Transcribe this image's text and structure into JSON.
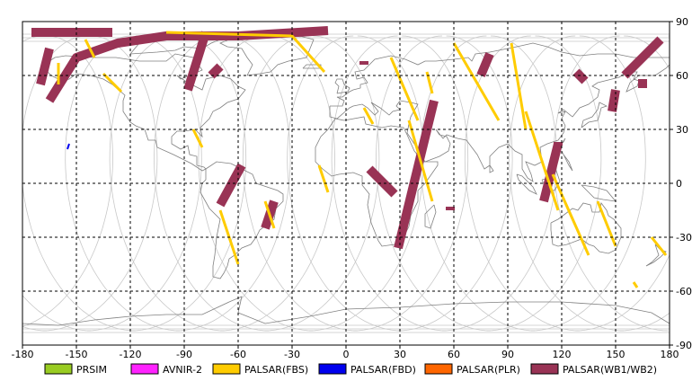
{
  "map": {
    "x_ticks": [
      "-180",
      "-150",
      "-120",
      "-90",
      "-60",
      "-30",
      "0",
      "30",
      "60",
      "90",
      "120",
      "150",
      "180"
    ],
    "y_ticks": [
      "90",
      "60",
      "30",
      "0",
      "-30",
      "-60",
      "-90"
    ],
    "lon_range": [
      -180,
      180
    ],
    "lat_range": [
      -90,
      90
    ],
    "grid": "dashed",
    "frame_color": "#000000",
    "grid_color": "#000000",
    "orbit_color": "#c8c8c8",
    "coast_color": "#808080"
  },
  "legend": {
    "placement": "bottom",
    "items": [
      {
        "label": "PRSIM",
        "color": "#99cc22"
      },
      {
        "label": "AVNIR-2",
        "color": "#ff22ff"
      },
      {
        "label": "PALSAR(FBS)",
        "color": "#ffcc00"
      },
      {
        "label": "PALSAR(FBD)",
        "color": "#0000ee"
      },
      {
        "label": "PALSAR(PLR)",
        "color": "#ff6600"
      },
      {
        "label": "PALSAR(WB1/WB2)",
        "color": "#993355"
      }
    ]
  },
  "swaths": [
    {
      "sensor": "PALSAR(WB1/WB2)",
      "lon": [
        -165,
        -150,
        -127,
        -100,
        -60,
        -10
      ],
      "lat": [
        46,
        70,
        78,
        82,
        82,
        85
      ]
    },
    {
      "sensor": "PALSAR(WB1/WB2)",
      "lon": [
        -175,
        -130
      ],
      "lat": [
        84,
        84
      ]
    },
    {
      "sensor": "PALSAR(WB1/WB2)",
      "lon": [
        -170,
        -165
      ],
      "lat": [
        55,
        75
      ]
    },
    {
      "sensor": "PALSAR(WB1/WB2)",
      "lon": [
        -88,
        -78
      ],
      "lat": [
        52,
        84
      ]
    },
    {
      "sensor": "PALSAR(WB1/WB2)",
      "lon": [
        -75,
        -70
      ],
      "lat": [
        60,
        65
      ]
    },
    {
      "sensor": "PALSAR(WB1/WB2)",
      "lon": [
        -58,
        -70
      ],
      "lat": [
        10,
        -12
      ]
    },
    {
      "sensor": "PALSAR(WB1/WB2)",
      "lon": [
        -40,
        -45
      ],
      "lat": [
        -10,
        -25
      ]
    },
    {
      "sensor": "PALSAR(WB1/WB2)",
      "lon": [
        10,
        10
      ],
      "lat": [
        68,
        66
      ]
    },
    {
      "sensor": "PALSAR(WB1/WB2)",
      "lon": [
        13,
        27
      ],
      "lat": [
        8,
        -6
      ]
    },
    {
      "sensor": "PALSAR(WB1/WB2)",
      "lon": [
        49,
        29
      ],
      "lat": [
        46,
        -36
      ]
    },
    {
      "sensor": "PALSAR(WB1/WB2)",
      "lon": [
        58,
        58
      ],
      "lat": [
        -13,
        -15
      ]
    },
    {
      "sensor": "PALSAR(WB1/WB2)",
      "lon": [
        80,
        75
      ],
      "lat": [
        72,
        60
      ]
    },
    {
      "sensor": "PALSAR(WB1/WB2)",
      "lon": [
        128,
        133
      ],
      "lat": [
        62,
        57
      ]
    },
    {
      "sensor": "PALSAR(WB1/WB2)",
      "lon": [
        118,
        110
      ],
      "lat": [
        22,
        -10
      ]
    },
    {
      "sensor": "PALSAR(WB1/WB2)",
      "lon": [
        118,
        118
      ],
      "lat": [
        23,
        21
      ]
    },
    {
      "sensor": "PALSAR(WB1/WB2)",
      "lon": [
        150,
        148
      ],
      "lat": [
        52,
        40
      ]
    },
    {
      "sensor": "PALSAR(WB1/WB2)",
      "lon": [
        175,
        155
      ],
      "lat": [
        80,
        60
      ]
    },
    {
      "sensor": "PALSAR(WB1/WB2)",
      "lon": [
        165,
        165
      ],
      "lat": [
        58,
        53
      ]
    },
    {
      "sensor": "PALSAR(FBS)",
      "lon": [
        -100,
        -30,
        -12
      ],
      "lat": [
        84,
        82,
        62
      ]
    },
    {
      "sensor": "PALSAR(FBS)",
      "lon": [
        -145,
        -140
      ],
      "lat": [
        80,
        70
      ]
    },
    {
      "sensor": "PALSAR(FBS)",
      "lon": [
        -160,
        -160
      ],
      "lat": [
        67,
        55
      ]
    },
    {
      "sensor": "PALSAR(FBS)",
      "lon": [
        -135,
        -125
      ],
      "lat": [
        61,
        51
      ]
    },
    {
      "sensor": "PALSAR(FBS)",
      "lon": [
        -85,
        -80
      ],
      "lat": [
        30,
        20
      ]
    },
    {
      "sensor": "PALSAR(FBS)",
      "lon": [
        -70,
        -60
      ],
      "lat": [
        -15,
        -45
      ]
    },
    {
      "sensor": "PALSAR(FBS)",
      "lon": [
        -45,
        -40
      ],
      "lat": [
        -10,
        -25
      ]
    },
    {
      "sensor": "PALSAR(FBS)",
      "lon": [
        -15,
        -10
      ],
      "lat": [
        10,
        -5
      ]
    },
    {
      "sensor": "PALSAR(FBS)",
      "lon": [
        10,
        15
      ],
      "lat": [
        42,
        33
      ]
    },
    {
      "sensor": "PALSAR(FBS)",
      "lon": [
        25,
        40
      ],
      "lat": [
        70,
        35
      ]
    },
    {
      "sensor": "PALSAR(FBS)",
      "lon": [
        35,
        48
      ],
      "lat": [
        35,
        -10
      ]
    },
    {
      "sensor": "PALSAR(FBS)",
      "lon": [
        45,
        48
      ],
      "lat": [
        62,
        50
      ]
    },
    {
      "sensor": "PALSAR(FBS)",
      "lon": [
        60,
        85
      ],
      "lat": [
        78,
        35
      ]
    },
    {
      "sensor": "PALSAR(FBS)",
      "lon": [
        92,
        100
      ],
      "lat": [
        78,
        30
      ]
    },
    {
      "sensor": "PALSAR(FBS)",
      "lon": [
        100,
        118
      ],
      "lat": [
        40,
        -15
      ]
    },
    {
      "sensor": "PALSAR(FBS)",
      "lon": [
        115,
        135
      ],
      "lat": [
        5,
        -40
      ]
    },
    {
      "sensor": "PALSAR(FBS)",
      "lon": [
        140,
        150
      ],
      "lat": [
        -10,
        -35
      ]
    },
    {
      "sensor": "PALSAR(FBS)",
      "lon": [
        160,
        162
      ],
      "lat": [
        -55,
        -58
      ]
    },
    {
      "sensor": "PALSAR(FBS)",
      "lon": [
        170,
        178
      ],
      "lat": [
        -30,
        -40
      ]
    },
    {
      "sensor": "PALSAR(FBD)",
      "lon": [
        -154,
        -155
      ],
      "lat": [
        22,
        19
      ]
    }
  ]
}
